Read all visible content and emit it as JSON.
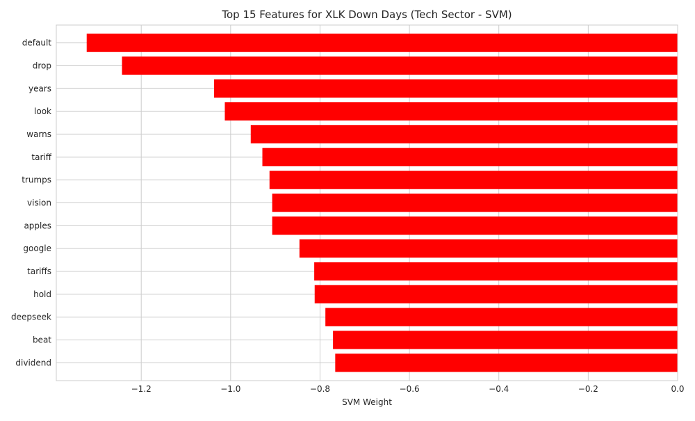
{
  "chart_data": {
    "type": "bar",
    "orientation": "horizontal",
    "title": "Top 15 Features for XLK Down Days (Tech Sector - SVM)",
    "xlabel": "SVM Weight",
    "ylabel": "",
    "categories": [
      "default",
      "drop",
      "years",
      "look",
      "warns",
      "tariff",
      "trumps",
      "vision",
      "apples",
      "google",
      "tariffs",
      "hold",
      "deepseek",
      "beat",
      "dividend"
    ],
    "values": [
      -1.322,
      -1.243,
      -1.037,
      -1.013,
      -0.955,
      -0.929,
      -0.913,
      -0.907,
      -0.907,
      -0.846,
      -0.813,
      -0.812,
      -0.788,
      -0.771,
      -0.766
    ],
    "xlim": [
      -1.39,
      0.0
    ],
    "xticks": [
      -1.2,
      -1.0,
      -0.8,
      -0.6,
      -0.4,
      -0.2,
      0.0
    ],
    "xtick_labels": [
      "−1.2",
      "−1.0",
      "−0.8",
      "−0.6",
      "−0.4",
      "−0.2",
      "0.0"
    ],
    "grid": true,
    "legend": "none",
    "bar_color": "#ff0000",
    "grid_color": "#cccccc",
    "background": "#ffffff"
  }
}
